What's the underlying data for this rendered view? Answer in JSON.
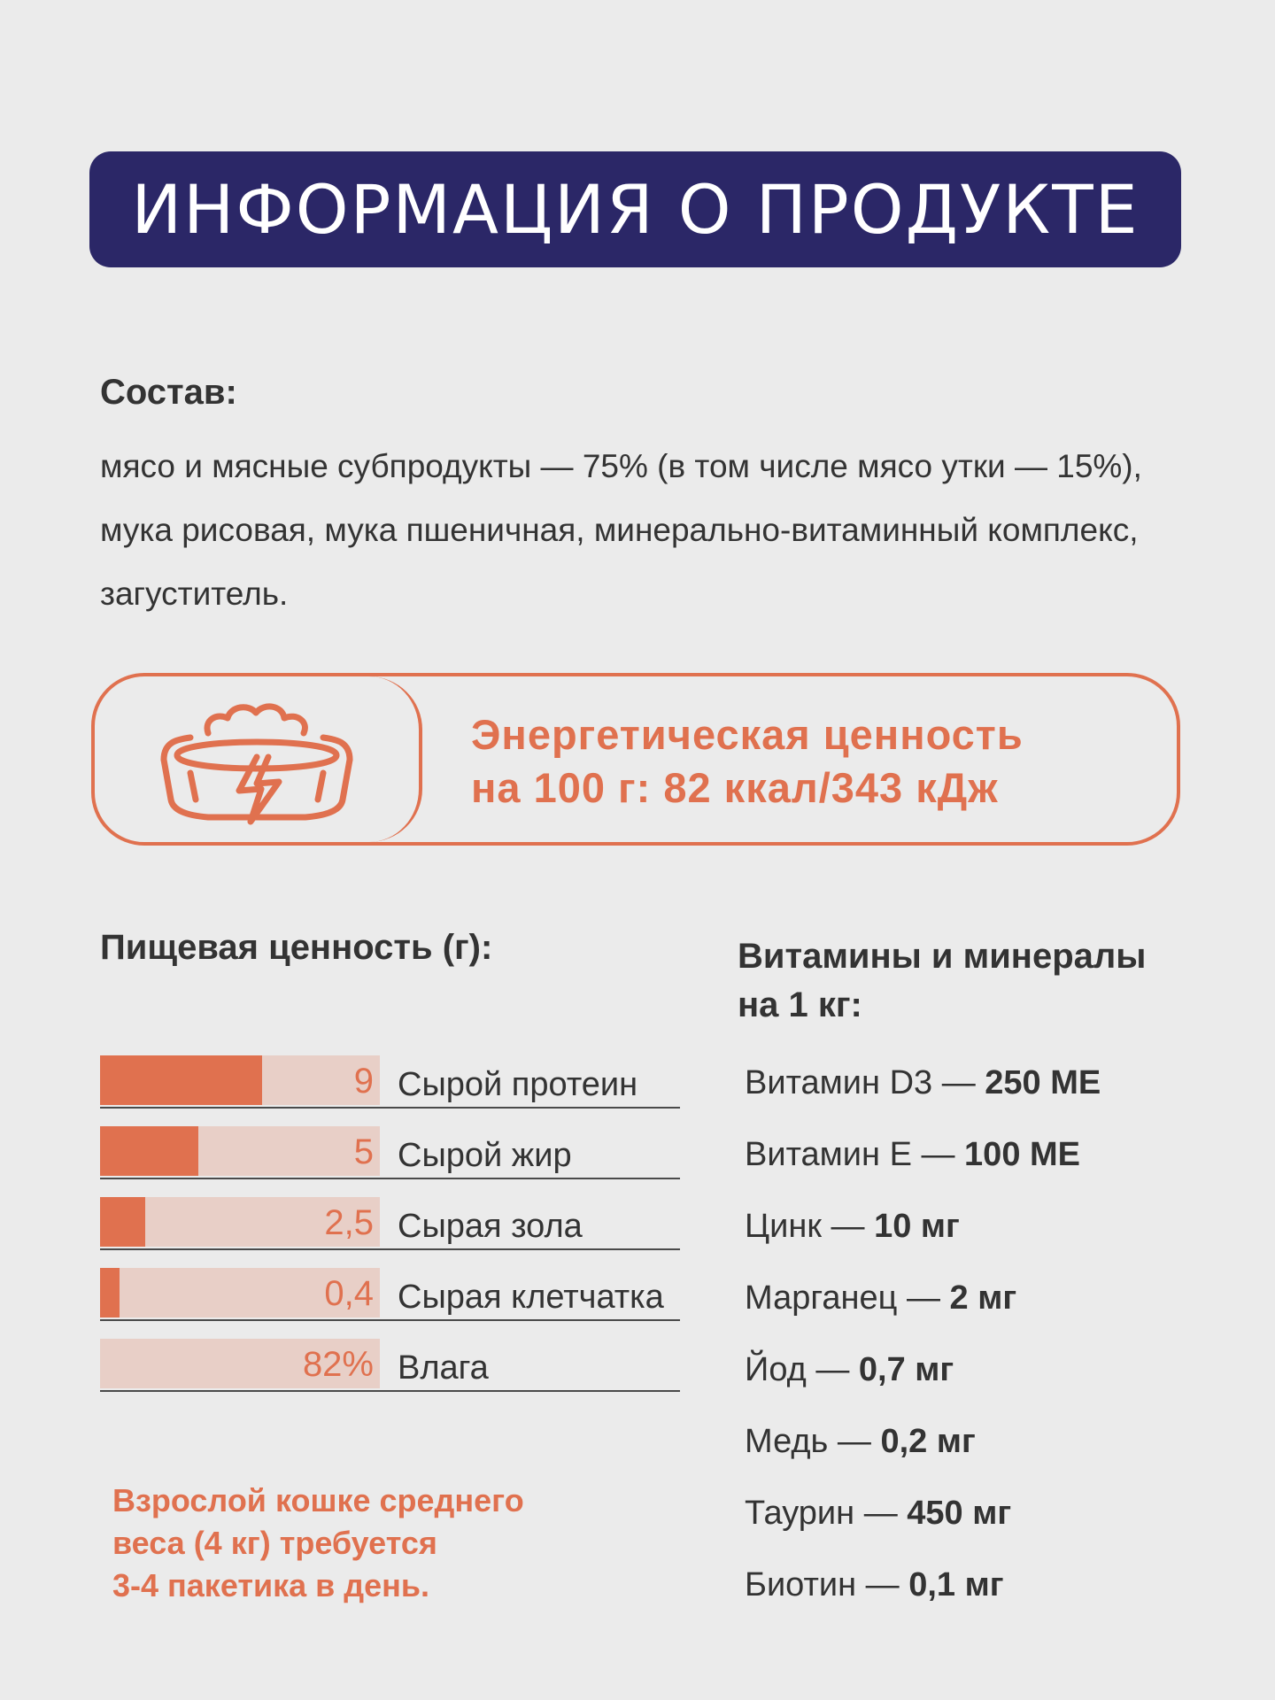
{
  "header": {
    "title": "ИНФОРМАЦИЯ О ПРОДУКТЕ"
  },
  "composition": {
    "label": "Состав:",
    "text": "мясо и мясные субпродукты — 75% (в том числе мясо утки — 15%), мука рисовая, мука пшеничная, минерально-витаминный комплекс, загуститель."
  },
  "energy": {
    "icon": "food-bowl-lightning-icon",
    "line1": "Энергетическая ценность",
    "line2": "на 100 г: 82 ккал/343 кДж"
  },
  "nutrition": {
    "title": "Пищевая ценность (г):",
    "items": [
      {
        "value": "9",
        "label": "Сырой протеин",
        "fill": 0.58
      },
      {
        "value": "5",
        "label": "Сырой жир",
        "fill": 0.35
      },
      {
        "value": "2,5",
        "label": "Сырая зола",
        "fill": 0.16
      },
      {
        "value": "0,4",
        "label": "Сырая клетчатка",
        "fill": 0.07
      },
      {
        "value": "82%",
        "label": "Влага",
        "fill": 0
      }
    ]
  },
  "vitamins": {
    "title_line1": "Витамины и минералы",
    "title_line2": "на 1 кг:",
    "items": [
      {
        "name": "Витамин D3 — ",
        "value": "250 МЕ"
      },
      {
        "name": "Витамин Е — ",
        "value": "100 МЕ"
      },
      {
        "name": "Цинк — ",
        "value": "10 мг"
      },
      {
        "name": "Марганец — ",
        "value": "2 мг"
      },
      {
        "name": "Йод — ",
        "value": "0,7 мг"
      },
      {
        "name": "Медь — ",
        "value": "0,2 мг"
      },
      {
        "name": "Таурин — ",
        "value": "450 мг"
      },
      {
        "name": "Биотин — ",
        "value": "0,1 мг"
      }
    ]
  },
  "note": {
    "line1": "Взрослой кошке среднего",
    "line2": "веса (4 кг) требуется",
    "line3": "3-4 пакетика в день."
  },
  "colors": {
    "navy": "#2b2767",
    "accent": "#e0714f",
    "bar_bg": "#e8cfc7",
    "background": "#ebebeb"
  }
}
